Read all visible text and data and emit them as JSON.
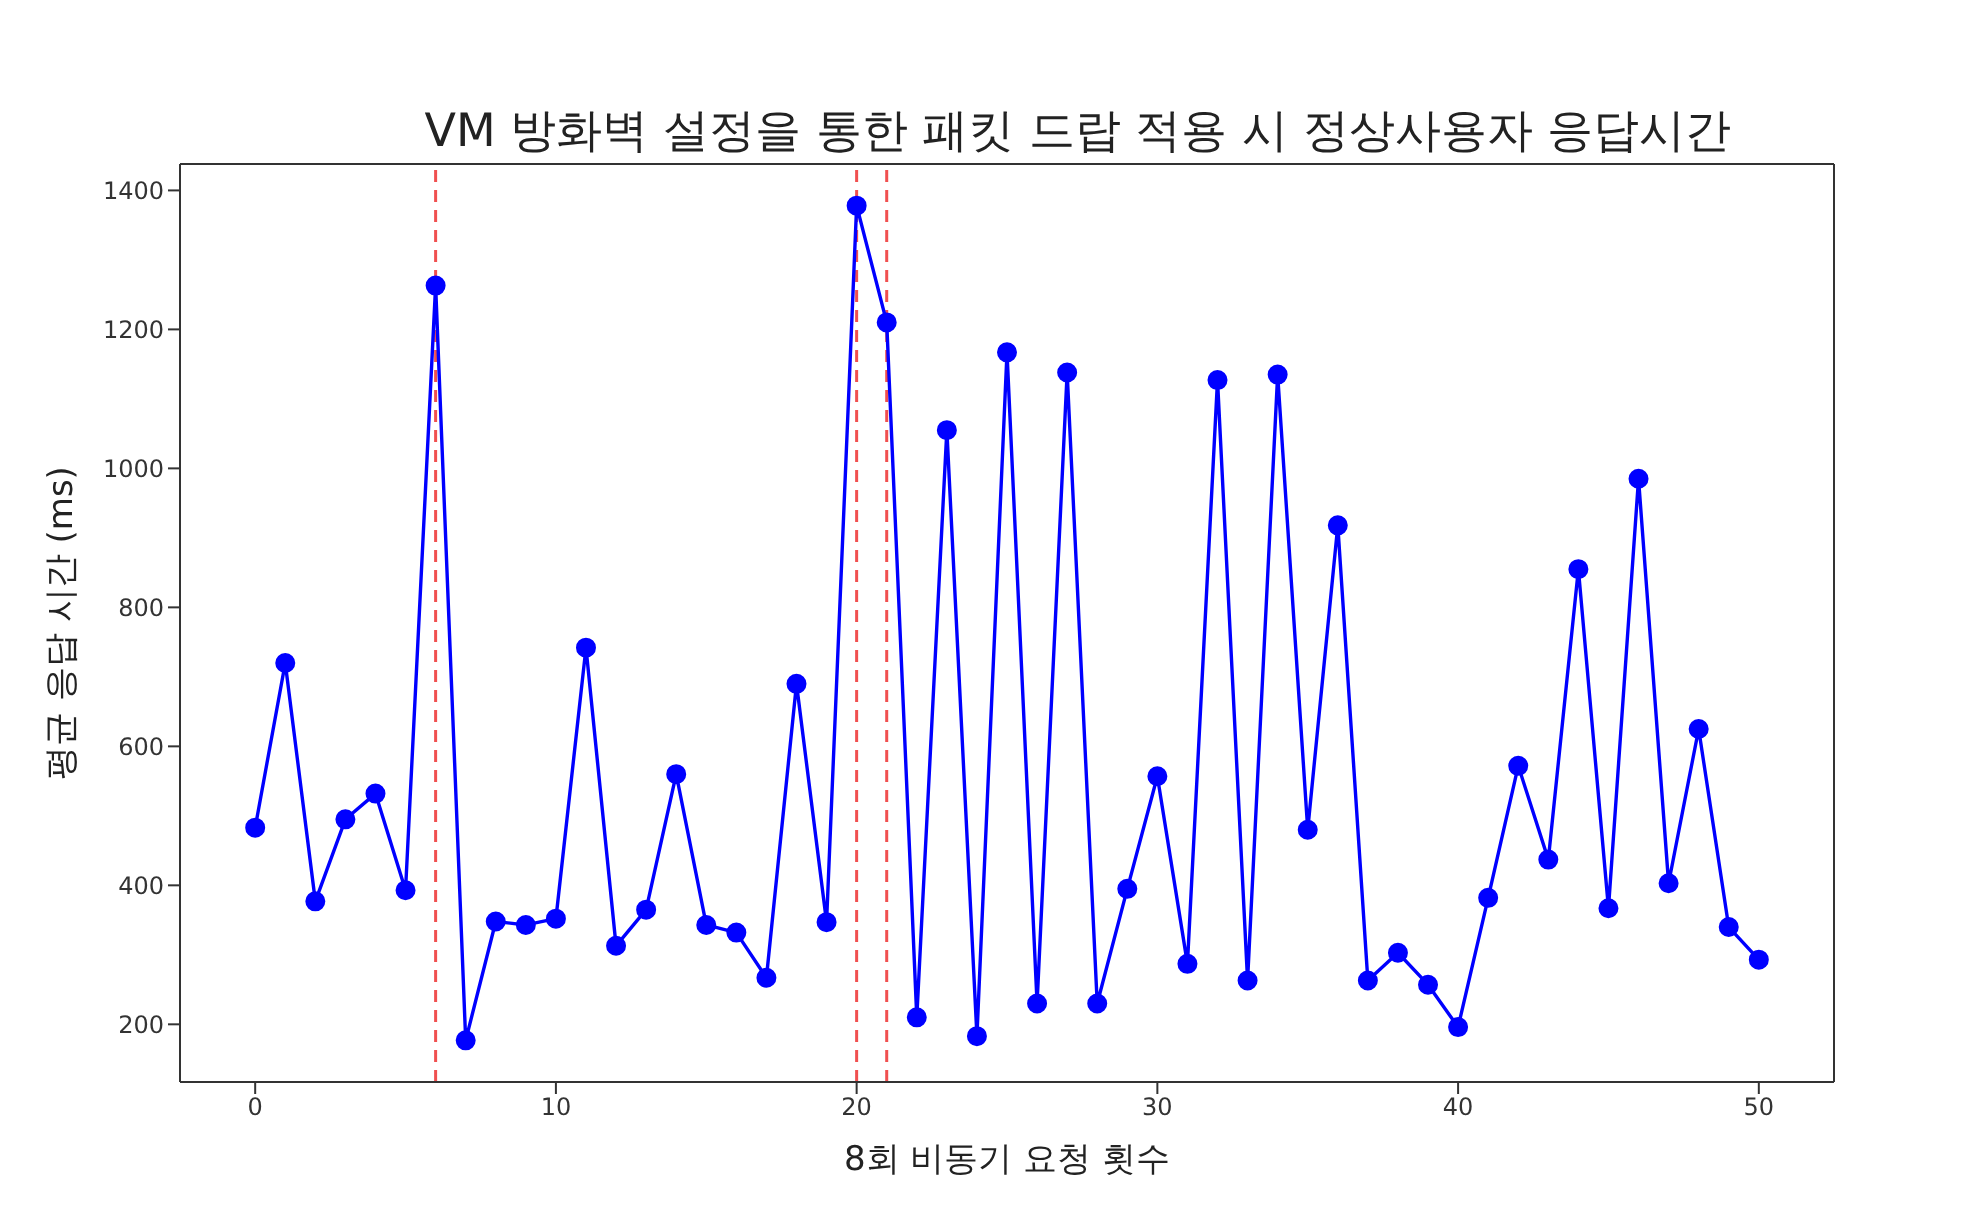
{
  "chart_data": {
    "type": "line",
    "title": "VM 방화벽 설정을 통한 패킷 드랍 적용 시 정상사용자 응답시간",
    "xlabel": "8회 비동기 요청 횟수",
    "ylabel": "평균 응답 시간 (ms)",
    "x": [
      0,
      1,
      2,
      3,
      4,
      5,
      6,
      7,
      8,
      9,
      10,
      11,
      12,
      13,
      14,
      15,
      16,
      17,
      18,
      19,
      20,
      21,
      22,
      23,
      24,
      25,
      26,
      27,
      28,
      29,
      30,
      31,
      32,
      33,
      34,
      35,
      36,
      37,
      38,
      39,
      40,
      41,
      42,
      43,
      44,
      45,
      46,
      47,
      48,
      49,
      50
    ],
    "series": [
      {
        "color": "#0000ff",
        "values": [
          483,
          720,
          377,
          495,
          532,
          393,
          1263,
          177,
          348,
          343,
          352,
          742,
          313,
          365,
          560,
          343,
          332,
          267,
          690,
          347,
          1378,
          1210,
          210,
          1055,
          183,
          1167,
          230,
          1138,
          230,
          395,
          557,
          287,
          1127,
          263,
          1135,
          480,
          918,
          263,
          303,
          257,
          196,
          382,
          572,
          437,
          855,
          367,
          985,
          403,
          625,
          340,
          293
        ]
      }
    ],
    "xlim": [
      -2.5,
      52.5
    ],
    "xticks": [
      0,
      10,
      20,
      30,
      40,
      50
    ],
    "ylim": [
      117,
      1438
    ],
    "yticks": [
      200,
      400,
      600,
      800,
      1000,
      1200,
      1400
    ],
    "ref_lines": [
      {
        "axis": "x",
        "value": 6,
        "color": "#f05050",
        "line_style": "dashed"
      },
      {
        "axis": "x",
        "value": 20,
        "color": "#f05050",
        "line_style": "dashed"
      },
      {
        "axis": "x",
        "value": 21,
        "color": "#f05050",
        "line_style": "dashed"
      }
    ],
    "grid": false,
    "legend": false,
    "marker": "circle",
    "line_style": "solid"
  }
}
